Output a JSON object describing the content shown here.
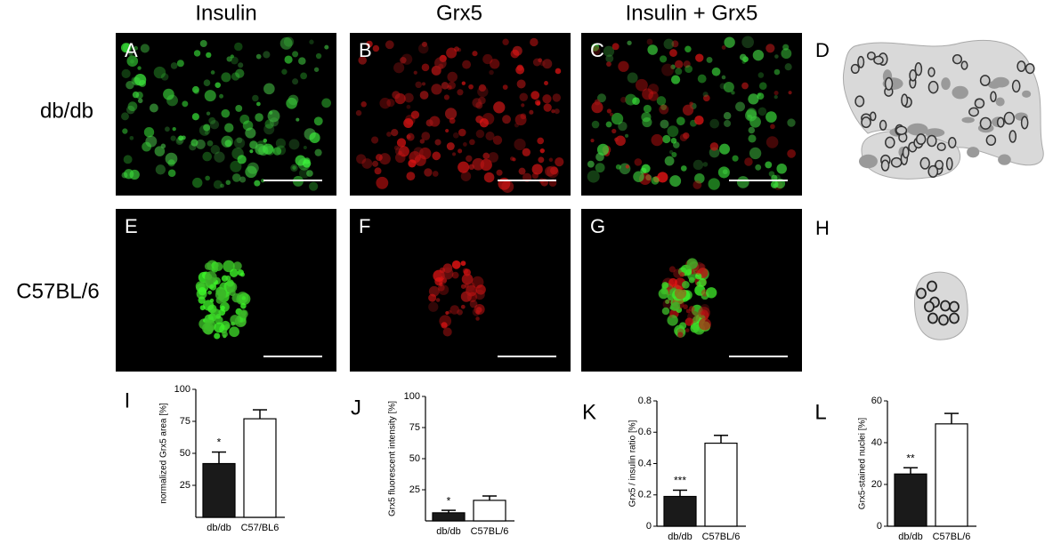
{
  "columns": [
    "Insulin",
    "Grx5",
    "Insulin + Grx5"
  ],
  "rows": [
    "db/db",
    "C57BL/6"
  ],
  "panel_letters": [
    "A",
    "B",
    "C",
    "D",
    "E",
    "F",
    "G",
    "H"
  ],
  "chart_data": [
    {
      "type": "bar",
      "panel_label": "I",
      "ylabel": "normalized Grx5 area [%]",
      "categories": [
        "db/db",
        "C57/BL6"
      ],
      "values": [
        42,
        77
      ],
      "errors": [
        9,
        7
      ],
      "colors": [
        "#1a1a1a",
        "#ffffff"
      ],
      "annotation": "*",
      "ylim": [
        0,
        100
      ],
      "yticks": [
        25,
        50,
        75,
        100
      ]
    },
    {
      "type": "bar",
      "panel_label": "J",
      "ylabel": "Grx5 fluorescent intensity [%]",
      "categories": [
        "db/db",
        "C57BL/6"
      ],
      "values": [
        6.5,
        16.5
      ],
      "errors": [
        2,
        3.5
      ],
      "colors": [
        "#1a1a1a",
        "#ffffff"
      ],
      "annotation": "*",
      "ylim": [
        0,
        100
      ],
      "yticks": [
        25,
        50,
        75,
        100
      ]
    },
    {
      "type": "bar",
      "panel_label": "K",
      "ylabel": "Grx5 / insulin ratio [%]",
      "categories": [
        "db/db",
        "C57BL/6"
      ],
      "values": [
        0.19,
        0.53
      ],
      "errors": [
        0.04,
        0.05
      ],
      "colors": [
        "#1a1a1a",
        "#ffffff"
      ],
      "annotation": "***",
      "ylim": [
        0,
        0.8
      ],
      "yticks": [
        0,
        0.2,
        0.4,
        0.6,
        0.8
      ]
    },
    {
      "type": "bar",
      "panel_label": "L",
      "ylabel": "Grx5-stained nuclei [%]",
      "categories": [
        "db/db",
        "C57BL/6"
      ],
      "values": [
        25,
        49
      ],
      "errors": [
        3,
        5
      ],
      "colors": [
        "#1a1a1a",
        "#ffffff"
      ],
      "annotation": "**",
      "ylim": [
        0,
        60
      ],
      "yticks": [
        0,
        20,
        40,
        60
      ]
    }
  ]
}
